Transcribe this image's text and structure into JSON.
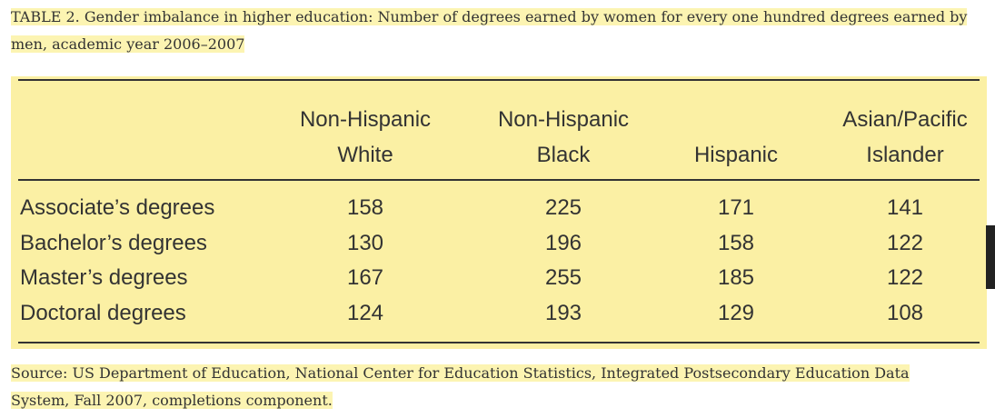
{
  "caption": "TABLE 2. Gender imbalance in higher education: Number of degrees earned by women for every one hundred degrees earned by men, academic year 2006–2007",
  "table": {
    "columns": [
      [
        "Non-Hispanic",
        "White"
      ],
      [
        "Non-Hispanic",
        "Black"
      ],
      [
        "Hispanic"
      ],
      [
        "Asian/Pacific",
        "Islander"
      ]
    ],
    "rows": [
      [
        "Associate’s degrees",
        158,
        225,
        171,
        141
      ],
      [
        "Bachelor’s degrees",
        130,
        196,
        158,
        122
      ],
      [
        "Master’s degrees",
        167,
        255,
        185,
        122
      ],
      [
        "Doctoral degrees",
        124,
        193,
        129,
        108
      ]
    ]
  },
  "source": "Source: US Department of Education, National Center for Education Statistics, Integrated Postsecondary Education Data System, Fall 2007, completions component."
}
